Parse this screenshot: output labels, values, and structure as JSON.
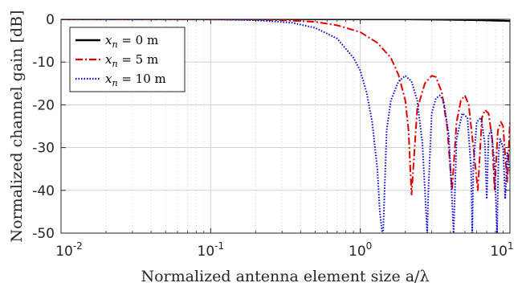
{
  "chart_data": {
    "type": "line",
    "xscale": "log",
    "xlim": [
      0.01,
      10
    ],
    "ylim": [
      -50,
      0
    ],
    "xlabel": "Normalized antenna element size a/λ",
    "ylabel": "Normalized channel gain [dB]",
    "xticks": [
      {
        "value": 0.01,
        "base": "10",
        "exp": "-2"
      },
      {
        "value": 0.1,
        "base": "10",
        "exp": "-1"
      },
      {
        "value": 1,
        "base": "10",
        "exp": "0"
      },
      {
        "value": 10,
        "base": "10",
        "exp": "1"
      }
    ],
    "yticks": [
      {
        "value": 0,
        "label": "0"
      },
      {
        "value": -10,
        "label": "-10"
      },
      {
        "value": -20,
        "label": "-20"
      },
      {
        "value": -30,
        "label": "-30"
      },
      {
        "value": -40,
        "label": "-40"
      },
      {
        "value": -50,
        "label": "-50"
      }
    ],
    "grid": true,
    "legend_position": "top-left",
    "series": [
      {
        "name": "x_n = 0 m",
        "legend_var": "x",
        "legend_sub": "n",
        "legend_rest": " = 0 m",
        "color": "#000000",
        "style": "solid",
        "x": [
          0.01,
          0.1,
          1,
          2,
          3,
          4,
          5,
          6,
          7,
          8,
          9,
          10
        ],
        "y": [
          0,
          0,
          0,
          0,
          -0.05,
          -0.1,
          -0.15,
          -0.2,
          -0.25,
          -0.3,
          -0.35,
          -0.4
        ]
      },
      {
        "name": "x_n = 5 m",
        "legend_var": "x",
        "legend_sub": "n",
        "legend_rest": " = 5 m",
        "color": "#e00000",
        "style": "dashdot",
        "x": [
          0.01,
          0.1,
          0.3,
          0.5,
          0.7,
          1.0,
          1.3,
          1.6,
          1.8,
          2.0,
          2.1,
          2.2,
          2.4,
          2.7,
          3.0,
          3.2,
          3.5,
          3.8,
          4.1,
          4.4,
          4.7,
          5.0,
          5.3,
          5.7,
          6.1,
          6.5,
          6.8,
          7.2,
          7.6,
          7.9,
          8.3,
          8.7,
          9.0,
          9.3,
          9.6,
          10
        ],
        "y": [
          0,
          0,
          -0.2,
          -0.6,
          -1.4,
          -3,
          -5.5,
          -9,
          -13,
          -19,
          -26,
          -41,
          -21,
          -15,
          -13.2,
          -13.5,
          -17,
          -25,
          -40,
          -24,
          -19,
          -17.8,
          -20,
          -30,
          -40,
          -23,
          -21.2,
          -22,
          -28,
          -40,
          -26,
          -24,
          -25,
          -32,
          -38,
          -24
        ]
      },
      {
        "name": "x_n = 10 m",
        "legend_var": "x",
        "legend_sub": "n",
        "legend_rest": " = 10 m",
        "color": "#0000dd",
        "style": "dotted",
        "x": [
          0.01,
          0.1,
          0.2,
          0.35,
          0.5,
          0.7,
          0.9,
          1.0,
          1.1,
          1.2,
          1.3,
          1.35,
          1.4,
          1.42,
          1.5,
          1.6,
          1.8,
          2.0,
          2.2,
          2.4,
          2.6,
          2.75,
          2.8,
          2.85,
          3.0,
          3.2,
          3.4,
          3.6,
          3.9,
          4.1,
          4.2,
          4.4,
          4.8,
          5.2,
          5.5,
          5.6,
          5.7,
          6.0,
          6.4,
          6.8,
          7.0,
          7.2,
          7.5,
          7.9,
          8.2,
          8.4,
          8.6,
          9.0,
          9.3,
          9.6,
          10
        ],
        "y": [
          0,
          0,
          -0.2,
          -0.8,
          -2,
          -4.5,
          -9,
          -12,
          -17,
          -24,
          -35,
          -45,
          -50,
          -50,
          -26,
          -19,
          -14.5,
          -13.2,
          -14.5,
          -19,
          -29,
          -45,
          -50,
          -40,
          -22,
          -18.5,
          -17.8,
          -19,
          -27,
          -42,
          -50,
          -28,
          -22,
          -23,
          -35,
          -50,
          -34,
          -24,
          -23,
          -29,
          -42,
          -27,
          -26,
          -34,
          -50,
          -31,
          -28,
          -30,
          -42,
          -31,
          -36
        ]
      }
    ]
  }
}
